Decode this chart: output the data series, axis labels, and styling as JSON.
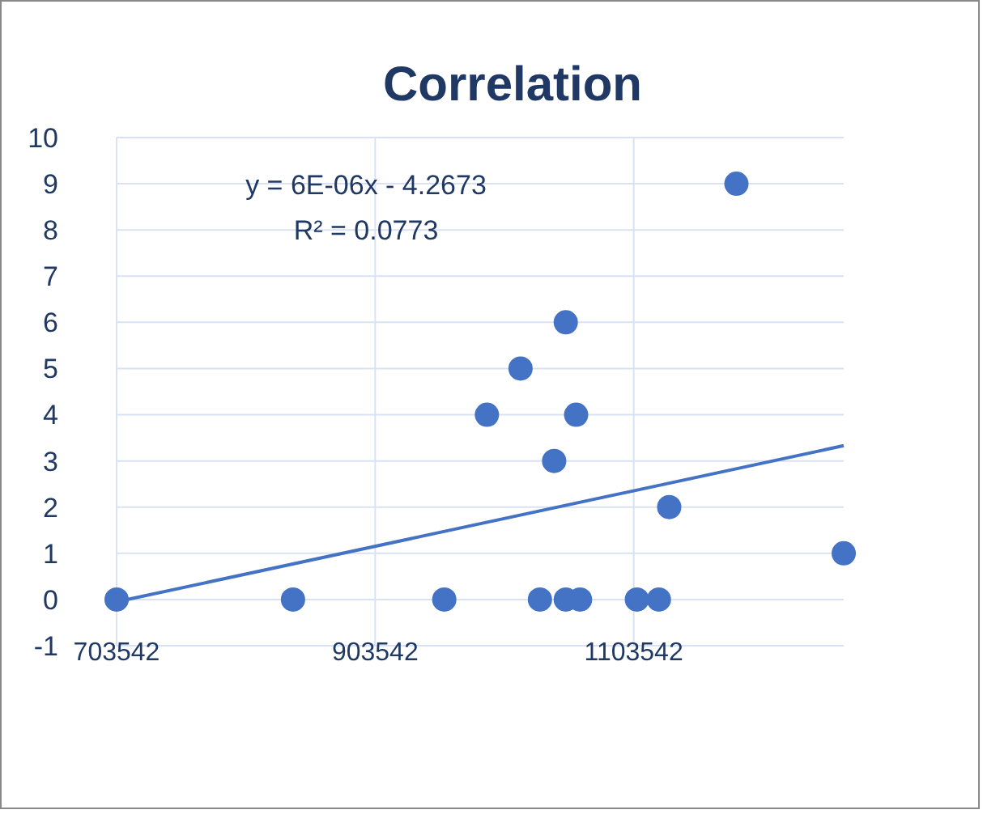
{
  "chart_data": {
    "type": "scatter",
    "title": "Correlation",
    "x": [
      703542,
      840000,
      957000,
      990000,
      1016000,
      1031000,
      1042000,
      1051000,
      1051000,
      1059000,
      1062000,
      1106000,
      1123000,
      1131000,
      1183000,
      1266000
    ],
    "series": [
      {
        "color": "#4472c4",
        "marker": "circle",
        "values": [
          0,
          0,
          0,
          4,
          5,
          0,
          3,
          6,
          0,
          4,
          0,
          0,
          0,
          2,
          9,
          1
        ]
      },
      {
        "type": "line",
        "color": "#4472c4",
        "marker": "none",
        "line_style": "solid",
        "x": [
          703542,
          1266000
        ],
        "values": [
          -0.05,
          3.33
        ]
      }
    ],
    "xlim": [
      703542,
      1266000
    ],
    "xticks": [
      703542,
      903542,
      1103542
    ],
    "ylim": [
      -1,
      10
    ],
    "yticks": [
      -1,
      0,
      1,
      2,
      3,
      4,
      5,
      6,
      7,
      8,
      9,
      10
    ],
    "grid": true,
    "legend": false,
    "annotations": [
      "y = 6E-06x - 4.2673",
      "R² = 0.0773"
    ]
  }
}
